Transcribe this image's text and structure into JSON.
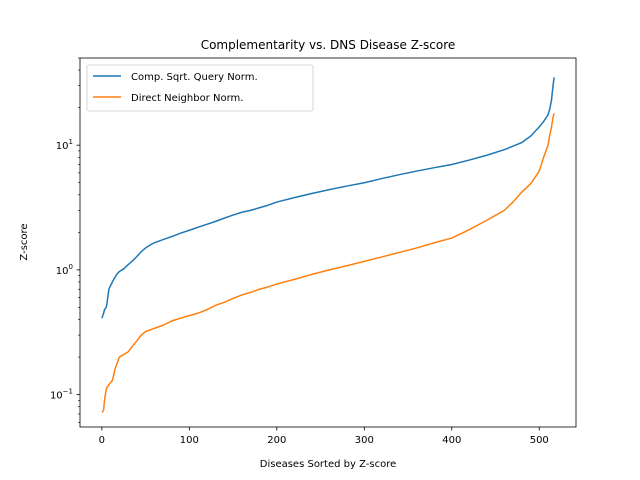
{
  "chart_data": {
    "type": "line",
    "title": "Complementarity vs. DNS Disease Z-score",
    "xlabel": "Diseases Sorted by Z-score",
    "ylabel": "Z-score",
    "yscale": "log",
    "xlim": [
      -25,
      542
    ],
    "ylim": [
      0.055,
      50
    ],
    "x_ticks": [
      0,
      100,
      200,
      300,
      400,
      500
    ],
    "x_tick_labels": [
      "0",
      "100",
      "200",
      "300",
      "400",
      "500"
    ],
    "y_ticks": [
      0.1,
      1,
      10
    ],
    "y_tick_labels": [
      "10",
      "10",
      "10"
    ],
    "y_tick_exponents": [
      "−1",
      "0",
      "1"
    ],
    "grid": false,
    "legend_position": "top-left",
    "series": [
      {
        "name": "Comp. Sqrt. Query Norm.",
        "color": "#1f77b4",
        "x": [
          0,
          2,
          3,
          5,
          6,
          8,
          10,
          12,
          14,
          17,
          20,
          25,
          30,
          35,
          40,
          45,
          50,
          55,
          60,
          70,
          80,
          90,
          100,
          110,
          120,
          130,
          140,
          150,
          160,
          170,
          180,
          190,
          200,
          220,
          240,
          260,
          280,
          300,
          320,
          340,
          360,
          380,
          400,
          420,
          440,
          460,
          480,
          490,
          500,
          505,
          510,
          512,
          514,
          515,
          516,
          517
        ],
        "values": [
          0.41,
          0.45,
          0.48,
          0.5,
          0.55,
          0.7,
          0.75,
          0.8,
          0.85,
          0.92,
          0.97,
          1.02,
          1.1,
          1.18,
          1.28,
          1.4,
          1.5,
          1.58,
          1.65,
          1.75,
          1.85,
          1.97,
          2.08,
          2.2,
          2.32,
          2.45,
          2.6,
          2.75,
          2.9,
          3.0,
          3.15,
          3.3,
          3.5,
          3.8,
          4.1,
          4.4,
          4.7,
          5.0,
          5.4,
          5.8,
          6.2,
          6.6,
          7.0,
          7.6,
          8.3,
          9.2,
          10.5,
          11.8,
          14.0,
          15.5,
          17.5,
          19.5,
          23.0,
          27.0,
          31.0,
          35.0
        ]
      },
      {
        "name": "Direct Neighbor Norm.",
        "color": "#ff7f0e",
        "x": [
          0,
          2,
          3,
          5,
          6,
          8,
          10,
          12,
          15,
          20,
          25,
          30,
          35,
          40,
          45,
          50,
          60,
          70,
          80,
          90,
          100,
          110,
          120,
          130,
          140,
          150,
          160,
          170,
          180,
          190,
          200,
          220,
          240,
          260,
          280,
          300,
          320,
          340,
          360,
          380,
          400,
          420,
          440,
          460,
          470,
          480,
          490,
          495,
          500,
          505,
          510,
          512,
          514,
          515,
          516,
          517
        ],
        "values": [
          0.072,
          0.075,
          0.09,
          0.11,
          0.115,
          0.12,
          0.125,
          0.13,
          0.16,
          0.2,
          0.21,
          0.22,
          0.245,
          0.27,
          0.3,
          0.32,
          0.34,
          0.36,
          0.39,
          0.41,
          0.43,
          0.45,
          0.48,
          0.52,
          0.55,
          0.59,
          0.63,
          0.66,
          0.7,
          0.73,
          0.77,
          0.84,
          0.92,
          1.0,
          1.08,
          1.17,
          1.27,
          1.38,
          1.5,
          1.65,
          1.8,
          2.1,
          2.5,
          3.0,
          3.5,
          4.2,
          4.9,
          5.5,
          6.2,
          8.0,
          10.0,
          12.0,
          14.0,
          15.5,
          17.0,
          18.0
        ]
      }
    ]
  }
}
